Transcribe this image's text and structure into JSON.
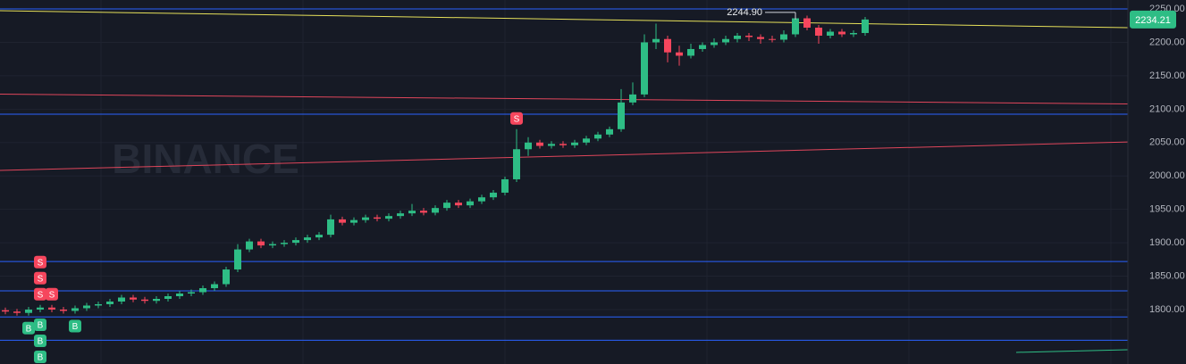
{
  "chart_data": {
    "type": "candlestick",
    "watermark": "BINANCE",
    "ylim": [
      1718.5,
      2263.4
    ],
    "yticks": [
      {
        "value": 1800,
        "label": "1800.00"
      },
      {
        "value": 1850,
        "label": "1850.00"
      },
      {
        "value": 1900,
        "label": "1900.00"
      },
      {
        "value": 1950,
        "label": "1950.00"
      },
      {
        "value": 2000,
        "label": "2000.00"
      },
      {
        "value": 2050,
        "label": "2050.00"
      },
      {
        "value": 2100,
        "label": "2100.00"
      },
      {
        "value": 2150,
        "label": "2150.00"
      },
      {
        "value": 2200,
        "label": "2200.00"
      },
      {
        "value": 2250,
        "label": "2250.00"
      }
    ],
    "grid": true,
    "up_color": "#2ebd85",
    "down_color": "#f6465d",
    "open": [
      1799,
      1797,
      1795,
      1800,
      1803,
      1800,
      1798,
      1802,
      1806,
      1808,
      1812,
      1818,
      1815,
      1813,
      1816,
      1820,
      1824,
      1826,
      1832,
      1838,
      1860,
      1890,
      1902,
      1896,
      1898,
      1900,
      1904,
      1908,
      1912,
      1935,
      1930,
      1934,
      1938,
      1936,
      1940,
      1944,
      1948,
      1945,
      1952,
      1960,
      1956,
      1962,
      1968,
      1975,
      1995,
      2040,
      2050,
      2045,
      2048,
      2046,
      2050,
      2056,
      2062,
      2070,
      2110,
      2122,
      2200,
      2205,
      2185,
      2180,
      2190,
      2196,
      2200,
      2205,
      2210,
      2208,
      2205,
      2204,
      2212,
      2236,
      2222,
      2210,
      2216,
      2212,
      2214
    ],
    "high": [
      1803,
      1801,
      1804,
      1807,
      1807,
      1804,
      1806,
      1810,
      1812,
      1816,
      1822,
      1822,
      1819,
      1820,
      1824,
      1828,
      1830,
      1836,
      1842,
      1864,
      1898,
      1906,
      1906,
      1902,
      1904,
      1908,
      1912,
      1916,
      1942,
      1939,
      1938,
      1942,
      1942,
      1944,
      1948,
      1958,
      1952,
      1956,
      1964,
      1964,
      1966,
      1972,
      1979,
      1999,
      2070,
      2058,
      2054,
      2052,
      2052,
      2054,
      2060,
      2066,
      2074,
      2130,
      2140,
      2212,
      2228,
      2210,
      2195,
      2198,
      2200,
      2206,
      2210,
      2214,
      2214,
      2212,
      2210,
      2218,
      2244.9,
      2240,
      2226,
      2220,
      2220,
      2218,
      2238
    ],
    "low": [
      1793,
      1791,
      1791,
      1796,
      1796,
      1794,
      1794,
      1798,
      1802,
      1804,
      1808,
      1811,
      1809,
      1809,
      1812,
      1816,
      1820,
      1822,
      1828,
      1834,
      1856,
      1886,
      1892,
      1892,
      1894,
      1896,
      1900,
      1904,
      1908,
      1926,
      1926,
      1930,
      1932,
      1932,
      1936,
      1940,
      1941,
      1941,
      1948,
      1952,
      1952,
      1958,
      1964,
      1971,
      1991,
      2030,
      2041,
      2041,
      2042,
      2042,
      2046,
      2052,
      2058,
      2066,
      2106,
      2118,
      2190,
      2170,
      2165,
      2176,
      2186,
      2192,
      2196,
      2200,
      2202,
      2198,
      2200,
      2200,
      2208,
      2218,
      2198,
      2206,
      2208,
      2208,
      2210
    ],
    "close": [
      1797,
      1795,
      1800,
      1803,
      1800,
      1798,
      1802,
      1806,
      1808,
      1812,
      1818,
      1815,
      1813,
      1816,
      1820,
      1824,
      1826,
      1832,
      1838,
      1860,
      1890,
      1902,
      1896,
      1898,
      1900,
      1904,
      1908,
      1912,
      1935,
      1930,
      1934,
      1938,
      1936,
      1940,
      1944,
      1948,
      1945,
      1952,
      1960,
      1956,
      1962,
      1968,
      1975,
      1995,
      2040,
      2050,
      2045,
      2048,
      2046,
      2050,
      2056,
      2062,
      2070,
      2110,
      2122,
      2200,
      2205,
      2185,
      2180,
      2190,
      2196,
      2200,
      2205,
      2210,
      2208,
      2205,
      2204,
      2212,
      2236,
      2222,
      2210,
      2216,
      2212,
      2214,
      2234.21
    ],
    "hlines": [
      {
        "value": 2250,
        "color": "#2962ff"
      },
      {
        "value": 2092.4,
        "color": "#2962ff"
      },
      {
        "value": 1872,
        "color": "#2962ff"
      },
      {
        "value": 1828,
        "color": "#2962ff"
      },
      {
        "value": 1789,
        "color": "#2962ff"
      },
      {
        "value": 1754,
        "color": "#2962ff"
      }
    ],
    "trendlines": [
      {
        "start": 2247.3,
        "end": 2222,
        "color": "#e6e05a"
      },
      {
        "start": 2122.5,
        "end": 2107.8,
        "color": "#e0465b"
      },
      {
        "start": 2008.3,
        "end": 2050.9,
        "color": "#e0465b"
      },
      {
        "start": 1735.9,
        "end": 1739.9,
        "color": "#2ebd85",
        "start_index": 87
      }
    ],
    "signals": [
      {
        "label": "S",
        "index": 3
      },
      {
        "label": "S",
        "index": 3
      },
      {
        "label": "S",
        "index": 3
      },
      {
        "label": "S",
        "index": 4
      },
      {
        "label": "B",
        "index": 2
      },
      {
        "label": "B",
        "index": 3
      },
      {
        "label": "B",
        "index": 3
      },
      {
        "label": "B",
        "index": 3
      },
      {
        "label": "B",
        "index": 6
      },
      {
        "label": "S",
        "index": 44
      }
    ],
    "annotations": [
      {
        "value": 2244.9,
        "label": "2244.90",
        "index": 68
      }
    ]
  }
}
